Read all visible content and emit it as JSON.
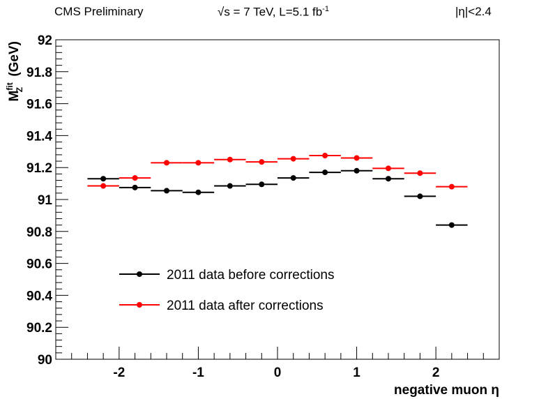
{
  "header": {
    "left": "CMS Preliminary",
    "center": "√s = 7 TeV, L=5.1 fb",
    "center_sup": "-1",
    "right": "|η|<2.4"
  },
  "chart_data": {
    "type": "scatter",
    "xlabel": "negative muon η",
    "ylabel": "M",
    "ylabel_sub": "Z",
    "ylabel_sup": "fit",
    "ylabel_unit": "(GeV)",
    "xlim": [
      -2.8,
      2.8
    ],
    "ylim": [
      90,
      92
    ],
    "x_ticks": [
      "-2",
      "-1",
      "0",
      "1",
      "2"
    ],
    "y_ticks": [
      "90",
      "90.2",
      "90.4",
      "90.6",
      "90.8",
      "91",
      "91.2",
      "91.4",
      "91.6",
      "91.8",
      "92"
    ],
    "grid": false,
    "legend_position": "bottom-left",
    "x_bin_edges": [
      -2.4,
      -2.0,
      -1.6,
      -1.2,
      -0.8,
      -0.4,
      0.0,
      0.4,
      0.8,
      1.2,
      1.6,
      2.0,
      2.4
    ],
    "series": [
      {
        "name": "2011 data before corrections",
        "color": "#000000",
        "x": [
          -2.2,
          -1.8,
          -1.4,
          -1.0,
          -0.6,
          -0.2,
          0.2,
          0.6,
          1.0,
          1.4,
          1.8,
          2.2
        ],
        "values": [
          91.13,
          91.075,
          91.055,
          91.045,
          91.085,
          91.095,
          91.135,
          91.17,
          91.18,
          91.13,
          91.02,
          90.84
        ]
      },
      {
        "name": "2011 data after corrections",
        "color": "#ff0000",
        "x": [
          -2.2,
          -1.8,
          -1.4,
          -1.0,
          -0.6,
          -0.2,
          0.2,
          0.6,
          1.0,
          1.4,
          1.8,
          2.2
        ],
        "values": [
          91.085,
          91.135,
          91.23,
          91.23,
          91.25,
          91.235,
          91.255,
          91.275,
          91.26,
          91.195,
          91.165,
          91.08
        ]
      }
    ]
  }
}
